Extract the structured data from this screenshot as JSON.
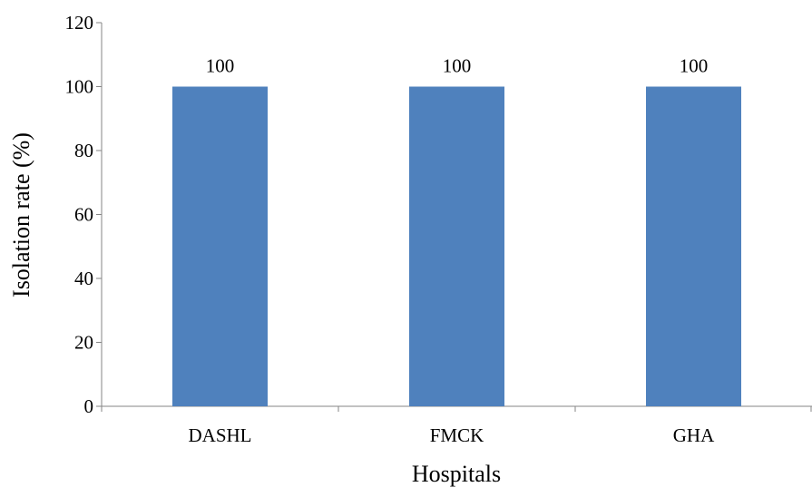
{
  "chart_data": {
    "type": "bar",
    "categories": [
      "DASHL",
      "FMCK",
      "GHA"
    ],
    "values": [
      100,
      100,
      100
    ],
    "data_labels": [
      "100",
      "100",
      "100"
    ],
    "title": "",
    "xlabel": "Hospitals",
    "ylabel": "Isolation rate (%)",
    "ylim": [
      0,
      120
    ],
    "yticks": [
      0,
      20,
      40,
      60,
      80,
      100,
      120
    ],
    "grid": false,
    "legend": "none",
    "bar_color": "#4F81BD",
    "axis_color": "#868686"
  }
}
